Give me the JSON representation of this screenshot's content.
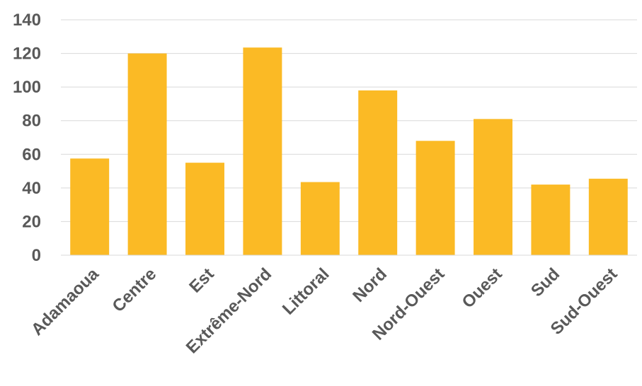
{
  "chart_data": {
    "type": "bar",
    "categories": [
      "Adamaoua",
      "Centre",
      "Est",
      "Extrême-Nord",
      "Littoral",
      "Nord",
      "Nord-Ouest",
      "Ouest",
      "Sud",
      "Sud-Ouest"
    ],
    "values": [
      57.5,
      120,
      55,
      123.5,
      43.5,
      98,
      68,
      81,
      42,
      45.5
    ],
    "yticks": [
      0,
      20,
      40,
      60,
      80,
      100,
      120,
      140
    ],
    "ylim": [
      0,
      140
    ],
    "title": "",
    "xlabel": "",
    "ylabel": "",
    "grid": true,
    "legend": "none",
    "bar_color": "#FBBA25",
    "gridline_color": "#D9D9D9",
    "label_color": "#595959"
  }
}
